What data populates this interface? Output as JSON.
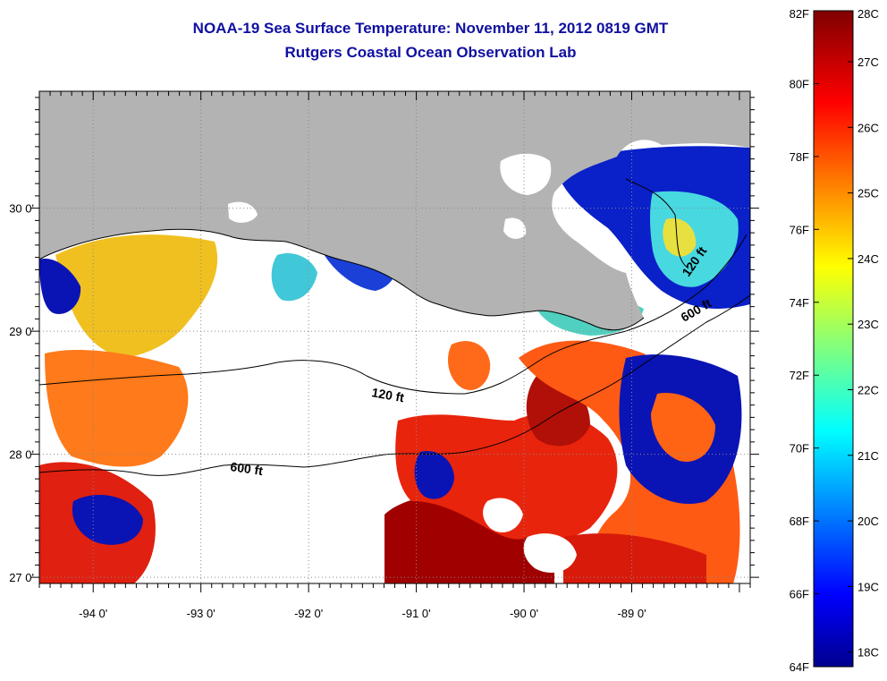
{
  "header": {
    "title": "NOAA-19 Sea Surface Temperature:  November 11, 2012 0819 GMT",
    "subtitle": "Rutgers Coastal Ocean Observation Lab"
  },
  "map": {
    "lon_range": [
      -94.5,
      -87.9
    ],
    "lat_range": [
      26.95,
      30.95
    ],
    "lon_ticks": [
      {
        "value": -94,
        "label": "-94 0'"
      },
      {
        "value": -93,
        "label": "-93 0'"
      },
      {
        "value": -92,
        "label": "-92 0'"
      },
      {
        "value": -91,
        "label": "-91 0'"
      },
      {
        "value": -90,
        "label": "-90 0'"
      },
      {
        "value": -89,
        "label": "-89 0'"
      }
    ],
    "lat_ticks": [
      {
        "value": 30,
        "label": "30 0'"
      },
      {
        "value": 29,
        "label": "29 0'"
      },
      {
        "value": 28,
        "label": "28 0'"
      },
      {
        "value": 27,
        "label": "27 0'"
      }
    ],
    "contours": [
      {
        "label": "120 ft"
      },
      {
        "label": "600 ft"
      },
      {
        "label": "120 ft"
      },
      {
        "label": "600 ft"
      }
    ],
    "colors": {
      "land": "#b3b3b3",
      "no_data": "#ffffff",
      "grid": "#8a8a8a"
    }
  },
  "colorbar": {
    "fahrenheit": [
      {
        "value": 82,
        "label": "82F"
      },
      {
        "value": 80,
        "label": "80F"
      },
      {
        "value": 78,
        "label": "78F"
      },
      {
        "value": 76,
        "label": "76F"
      },
      {
        "value": 74,
        "label": "74F"
      },
      {
        "value": 72,
        "label": "72F"
      },
      {
        "value": 70,
        "label": "70F"
      },
      {
        "value": 68,
        "label": "68F"
      },
      {
        "value": 66,
        "label": "66F"
      },
      {
        "value": 64,
        "label": "64F"
      }
    ],
    "celsius": [
      {
        "value": 28,
        "label": "28C"
      },
      {
        "value": 27,
        "label": "27C"
      },
      {
        "value": 26,
        "label": "26C"
      },
      {
        "value": 25,
        "label": "25C"
      },
      {
        "value": 24,
        "label": "24C"
      },
      {
        "value": 23,
        "label": "23C"
      },
      {
        "value": 22,
        "label": "22C"
      },
      {
        "value": 21,
        "label": "21C"
      },
      {
        "value": 20,
        "label": "20C"
      },
      {
        "value": 19,
        "label": "19C"
      },
      {
        "value": 18,
        "label": "18C"
      }
    ],
    "colormap": "jet"
  }
}
